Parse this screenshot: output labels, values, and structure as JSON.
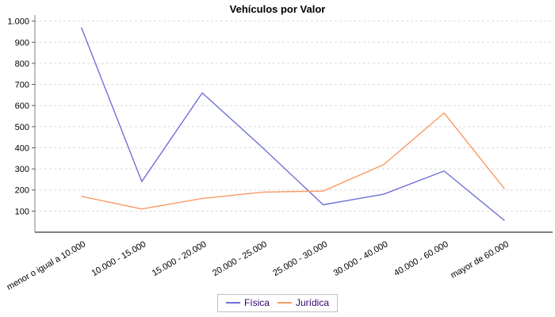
{
  "title": "Vehículos por Valor",
  "chart_data": {
    "type": "line",
    "title": "Vehículos por Valor",
    "categories": [
      "menor o igual a 10.000",
      "10.000 - 15.000",
      "15.000 - 20.000",
      "20.000 - 25.000",
      "25.000 - 30.000",
      "30.000 - 40.000",
      "40.000 - 60.000",
      "mayor de 60.000"
    ],
    "series": [
      {
        "name": "Física",
        "color": "#7070d8",
        "values": [
          970,
          240,
          660,
          400,
          130,
          180,
          290,
          55
        ]
      },
      {
        "name": "Jurídica",
        "color": "#f99a64",
        "values": [
          170,
          110,
          160,
          190,
          195,
          320,
          565,
          205
        ]
      }
    ],
    "xlabel": "",
    "ylabel": "",
    "ylim": [
      0,
      1010
    ],
    "yticks": [
      100,
      200,
      300,
      400,
      500,
      600,
      700,
      800,
      900,
      1000
    ],
    "ytick_labels": [
      "100",
      "200",
      "300",
      "400",
      "500",
      "600",
      "700",
      "800",
      "900",
      "1.000"
    ],
    "grid": "horizontal-dashed",
    "x_label_rotation_deg": -30,
    "legend_position": "bottom"
  },
  "colors": {
    "background": "#ffffff",
    "grid": "#d9d9d9",
    "axis": "#808080",
    "tick_mark": "#555555",
    "tick_label": "#000000",
    "legend_text": "#330066",
    "legend_border": "#c0c0c0"
  }
}
